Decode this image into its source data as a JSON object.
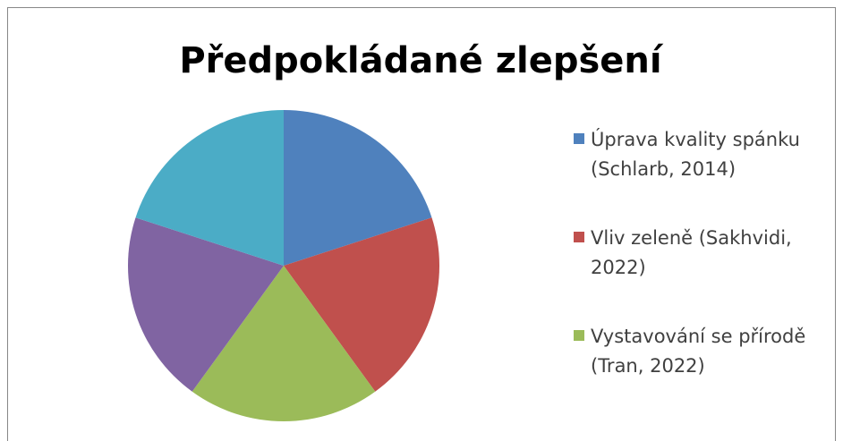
{
  "chart_data": {
    "type": "pie",
    "title": "Předpokládané zlepšení",
    "categories": [
      "Úprava kvality spánku (Schlarb, 2014)",
      "Vliv zeleně (Sakhvidi, 2022)",
      "Vystavování se přírodě (Tran, 2022)",
      null,
      null
    ],
    "values": [
      20,
      20,
      20,
      20,
      20
    ],
    "colors": [
      "#4f81bd",
      "#c0504d",
      "#9bbb59",
      "#8064a2",
      "#4bacc6"
    ],
    "legend": "right"
  }
}
